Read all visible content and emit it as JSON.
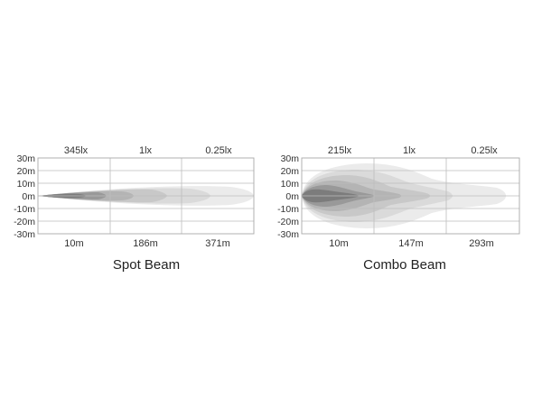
{
  "chart_data": [
    {
      "type": "beam-pattern",
      "title": "Spot Beam",
      "y_axis_labels": [
        "30m",
        "20m",
        "10m",
        "0m",
        "-10m",
        "-20m",
        "-30m"
      ],
      "lux_labels": [
        "345lx",
        "1lx",
        "0.25lx"
      ],
      "distance_labels": [
        "10m",
        "186m",
        "371m"
      ],
      "shading_colors": [
        "#ebebeb",
        "#dadada",
        "#c8c8c8",
        "#b4b4b4",
        "#999999",
        "#7c7c7c"
      ]
    },
    {
      "type": "beam-pattern",
      "title": "Combo Beam",
      "y_axis_labels": [
        "30m",
        "20m",
        "10m",
        "0m",
        "-10m",
        "-20m",
        "-30m"
      ],
      "lux_labels": [
        "215lx",
        "1lx",
        "0.25lx"
      ],
      "distance_labels": [
        "10m",
        "147m",
        "293m"
      ],
      "shading_colors": [
        "#ebebeb",
        "#dadada",
        "#c8c8c8",
        "#b4b4b4",
        "#999999",
        "#7c7c7c"
      ]
    }
  ]
}
